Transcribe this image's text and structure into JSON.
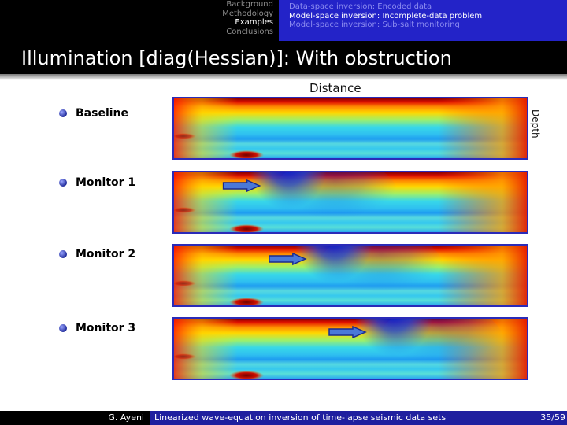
{
  "nav": {
    "left": [
      {
        "label": "Background",
        "active": false
      },
      {
        "label": "Methodology",
        "active": false
      },
      {
        "label": "Examples",
        "active": true
      },
      {
        "label": "Conclusions",
        "active": false
      }
    ],
    "right": [
      {
        "label": "Data-space inversion: Encoded data",
        "active": false
      },
      {
        "label": "Model-space inversion: Incomplete-data problem",
        "active": true
      },
      {
        "label": "Model-space inversion: Sub-salt monitoring",
        "active": false
      }
    ]
  },
  "title": "Illumination [diag(Hessian)]: With obstruction",
  "axes": {
    "x": "Distance",
    "y": "Depth"
  },
  "items": [
    {
      "label": "Baseline",
      "obstruction_position": null
    },
    {
      "label": "Monitor 1",
      "obstruction_position": 0.2
    },
    {
      "label": "Monitor 2",
      "obstruction_position": 0.33
    },
    {
      "label": "Monitor 3",
      "obstruction_position": 0.5
    }
  ],
  "colors": {
    "nav_accent": "#2323c8",
    "panel_border": "#2b2bb8",
    "arrow": "#4a78d8"
  },
  "footer": {
    "author": "G. Ayeni",
    "title": "Linearized wave-equation inversion of time-lapse seismic data sets",
    "page": "35/59"
  }
}
